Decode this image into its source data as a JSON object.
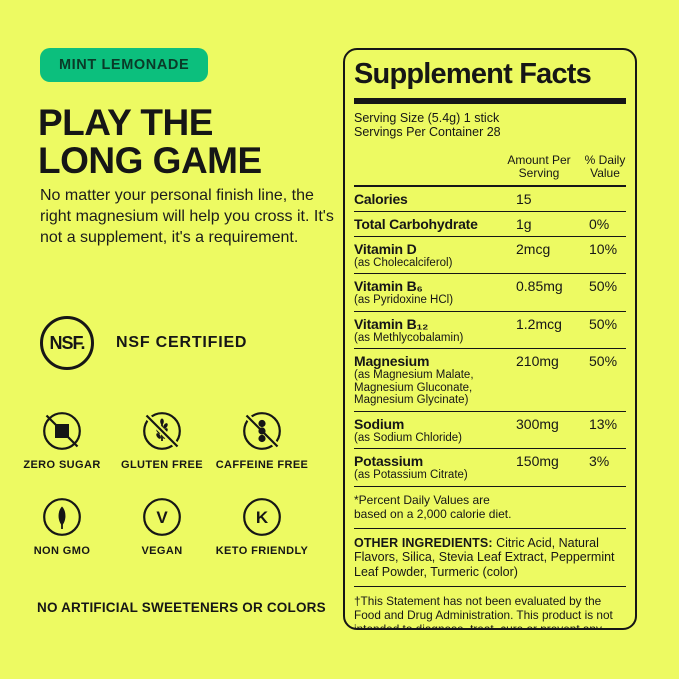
{
  "page": {
    "background_color": "#edfa62",
    "text_color": "#161616"
  },
  "left": {
    "flavor_badge": {
      "label": "MINT LEMONADE",
      "bg_color": "#0cbf7d",
      "text_color": "#0a3a28"
    },
    "headline": "PLAY THE\nLONG GAME",
    "body": "No matter your personal finish line, the right magnesium will help you cross it. It's not a supplement, it's a requirement.",
    "nsf": {
      "logo_text": "NSF.",
      "label": "NSF CERTIFIED"
    },
    "badges": [
      {
        "icon": "zero-sugar-icon",
        "label": "ZERO SUGAR"
      },
      {
        "icon": "gluten-free-icon",
        "label": "GLUTEN FREE"
      },
      {
        "icon": "caffeine-free-icon",
        "label": "CAFFEINE FREE"
      },
      {
        "icon": "non-gmo-icon",
        "label": "NON GMO"
      },
      {
        "icon": "vegan-icon",
        "label": "VEGAN",
        "glyph": "V"
      },
      {
        "icon": "keto-friendly-icon",
        "label": "KETO FRIENDLY",
        "glyph": "K"
      }
    ],
    "footer_note": "NO ARTIFICIAL SWEETENERS OR COLORS"
  },
  "facts": {
    "title": "Supplement Facts",
    "serving_size": "Serving Size (5.4g) 1 stick",
    "servings_per_container": "Servings Per Container 28",
    "col_amount": "Amount Per\nServing",
    "col_dv": "% Daily\nValue",
    "rows": [
      {
        "name": "Calories",
        "sub": "",
        "amount": "15",
        "dv": ""
      },
      {
        "name": "Total Carbohydrate",
        "sub": "",
        "amount": "1g",
        "dv": "0%"
      },
      {
        "name": "Vitamin D",
        "sub": "(as Cholecalciferol)",
        "amount": "2mcg",
        "dv": "10%"
      },
      {
        "name": "Vitamin B₆",
        "sub": "(as Pyridoxine HCl)",
        "amount": "0.85mg",
        "dv": "50%"
      },
      {
        "name": "Vitamin B₁₂",
        "sub": "(as Methlycobalamin)",
        "amount": "1.2mcg",
        "dv": "50%"
      },
      {
        "name": "Magnesium",
        "sub": "(as Magnesium Malate,\nMagnesium Gluconate,\nMagnesium Glycinate)",
        "amount": "210mg",
        "dv": "50%"
      },
      {
        "name": "Sodium",
        "sub": "(as Sodium Chloride)",
        "amount": "300mg",
        "dv": "13%"
      },
      {
        "name": "Potassium",
        "sub": "(as Potassium Citrate)",
        "amount": "150mg",
        "dv": "3%"
      }
    ],
    "footnote": "*Percent Daily Values are\nbased on a 2,000 calorie diet.",
    "other_ingredients_label": "OTHER INGREDIENTS:",
    "other_ingredients_text": " Citric Acid, Natural Flavors, Silica, Stevia Leaf Extract, Peppermint Leaf Powder, Turmeric (color)",
    "disclaimer": "†This Statement has not been evaluated by the Food and Drug Administration. This product is not intended to diagnose, treat, cure or prevent any disease."
  }
}
